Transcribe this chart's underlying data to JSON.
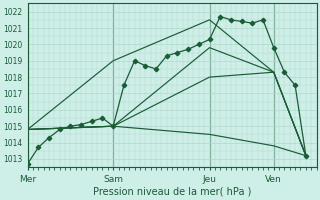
{
  "title": "Pression niveau de la mer( hPa )",
  "bg_color": "#ceeee8",
  "grid_color": "#b0d8cc",
  "line_color": "#1a5c35",
  "ylim": [
    1012.5,
    1022.5
  ],
  "yticks": [
    1013,
    1014,
    1015,
    1016,
    1017,
    1018,
    1019,
    1020,
    1021,
    1022
  ],
  "day_labels": [
    "Mer",
    "Sam",
    "Jeu",
    "Ven"
  ],
  "day_positions": [
    0,
    8,
    17,
    23
  ],
  "xlim": [
    0,
    27
  ],
  "series_main": {
    "x": [
      0,
      1,
      2,
      3,
      4,
      5,
      6,
      7,
      8,
      9,
      10,
      11,
      12,
      13,
      14,
      15,
      16,
      17,
      18,
      19,
      20,
      21,
      22,
      23,
      24,
      25,
      26
    ],
    "y": [
      1012.7,
      1013.7,
      1014.3,
      1014.8,
      1015.0,
      1015.1,
      1015.3,
      1015.5,
      1015.0,
      1017.5,
      1019.0,
      1018.7,
      1018.5,
      1019.3,
      1019.5,
      1019.7,
      1020.0,
      1020.3,
      1021.7,
      1021.5,
      1021.4,
      1021.3,
      1021.5,
      1019.8,
      1018.3,
      1017.5,
      1013.2
    ]
  },
  "series_plain": [
    {
      "x": [
        0,
        8,
        17,
        23,
        26
      ],
      "y": [
        1014.8,
        1015.0,
        1014.5,
        1013.8,
        1013.2
      ]
    },
    {
      "x": [
        0,
        8,
        17,
        23,
        26
      ],
      "y": [
        1014.8,
        1015.0,
        1018.0,
        1018.3,
        1013.2
      ]
    },
    {
      "x": [
        0,
        8,
        17,
        23,
        26
      ],
      "y": [
        1014.8,
        1015.0,
        1019.8,
        1018.3,
        1013.2
      ]
    },
    {
      "x": [
        0,
        8,
        17,
        23,
        26
      ],
      "y": [
        1014.8,
        1019.0,
        1021.5,
        1018.3,
        1013.2
      ]
    }
  ]
}
